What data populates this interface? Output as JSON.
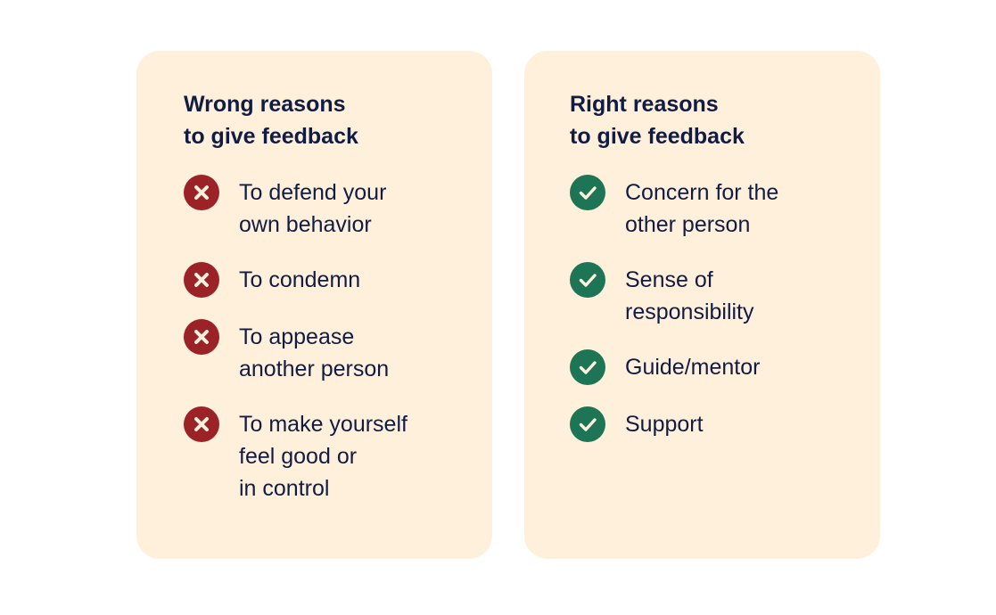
{
  "colors": {
    "card_bg": "#fff0dc",
    "text": "#111c44",
    "wrong": "#9b2226",
    "right": "#1d7556"
  },
  "wrong": {
    "title": "Wrong reasons\nto give feedback",
    "icon": "x-circle-icon",
    "items": [
      {
        "text": "To defend your\nown behavior"
      },
      {
        "text": "To condemn"
      },
      {
        "text": "To appease\nanother person"
      },
      {
        "text": "To make yourself\nfeel good or\nin control"
      }
    ]
  },
  "right": {
    "title": "Right reasons\nto give feedback",
    "icon": "check-circle-icon",
    "items": [
      {
        "text": "Concern for the\nother person"
      },
      {
        "text": "Sense of\nresponsibility"
      },
      {
        "text": "Guide/mentor"
      },
      {
        "text": "Support"
      }
    ]
  }
}
